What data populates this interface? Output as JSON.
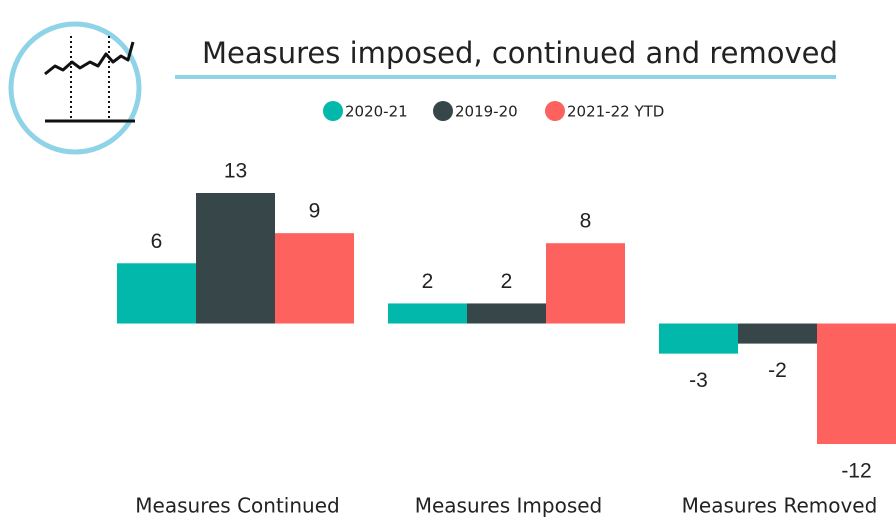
{
  "chart_data": {
    "type": "bar",
    "title": "Measures imposed, continued and removed",
    "categories": [
      "Measures Continued",
      "Measures Imposed",
      "Measures Removed"
    ],
    "series": [
      {
        "name": "2020-21",
        "color": "#01b8aa",
        "values": [
          6,
          2,
          -3
        ]
      },
      {
        "name": "2019-20",
        "color": "#374649",
        "values": [
          13,
          2,
          -2
        ]
      },
      {
        "name": "2021-22 YTD",
        "color": "#fd625e",
        "values": [
          9,
          8,
          -12
        ]
      }
    ]
  }
}
